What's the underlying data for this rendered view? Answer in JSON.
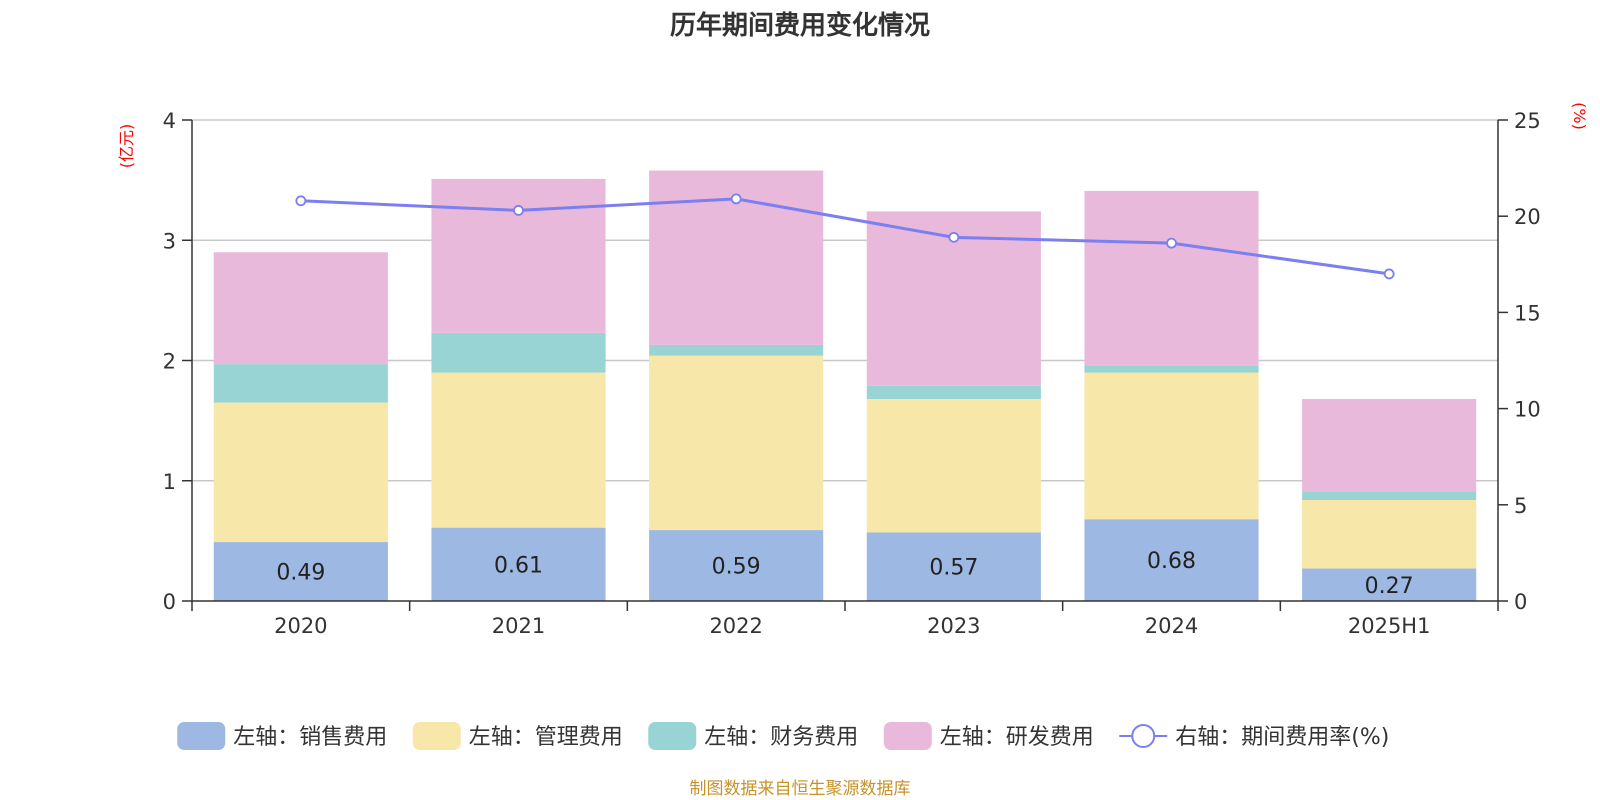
{
  "title": "历年期间费用变化情况",
  "left_unit": "(亿元)",
  "right_unit": "(%)",
  "source": "制图数据来自恒生聚源数据库",
  "chart_data": {
    "type": "bar",
    "stacked": true,
    "categories": [
      "2020",
      "2021",
      "2022",
      "2023",
      "2024",
      "2025H1"
    ],
    "series": [
      {
        "name": "左轴：销售费用",
        "axis": "left",
        "color": "#9db8e2",
        "values": [
          0.49,
          0.61,
          0.59,
          0.57,
          0.68,
          0.27
        ],
        "labels": [
          "0.49",
          "0.61",
          "0.59",
          "0.57",
          "0.68",
          "0.27"
        ]
      },
      {
        "name": "左轴：管理费用",
        "axis": "left",
        "color": "#f7e7a9",
        "values": [
          1.16,
          1.29,
          1.45,
          1.11,
          1.22,
          0.57
        ]
      },
      {
        "name": "左轴：财务费用",
        "axis": "left",
        "color": "#98d4d4",
        "values": [
          0.32,
          0.33,
          0.09,
          0.11,
          0.06,
          0.07
        ]
      },
      {
        "name": "左轴：研发费用",
        "axis": "left",
        "color": "#e8b9da",
        "values": [
          0.93,
          1.28,
          1.45,
          1.45,
          1.45,
          0.77
        ]
      }
    ],
    "line": {
      "name": "右轴：期间费用率(%)",
      "axis": "right",
      "color": "#7b7ff0",
      "values": [
        20.8,
        20.3,
        20.9,
        18.9,
        18.6,
        17.0
      ]
    },
    "left_axis": {
      "min": 0,
      "max": 4,
      "ticks": [
        0,
        1,
        2,
        3,
        4
      ]
    },
    "right_axis": {
      "min": 0,
      "max": 25,
      "ticks": [
        0,
        5,
        10,
        15,
        20,
        25
      ]
    },
    "grid": true,
    "legend_position": "bottom"
  }
}
